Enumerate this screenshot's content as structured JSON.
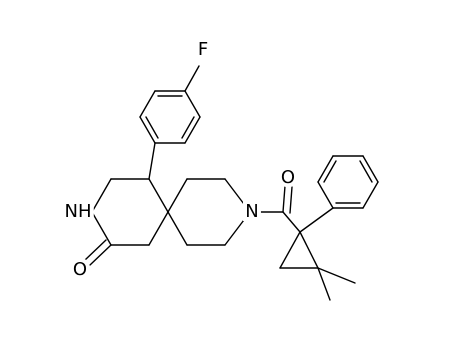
{
  "atoms": {
    "fluorine": "F",
    "lactam_nitrogen": "NH",
    "lactam_oxygen": "O",
    "amide_nitrogen": "N",
    "amide_oxygen": "O"
  }
}
